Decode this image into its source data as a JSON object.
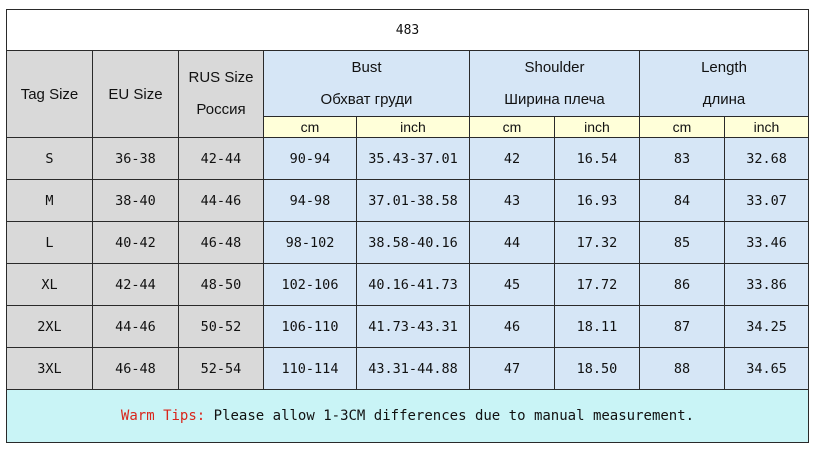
{
  "title": "483",
  "headers": {
    "tag_size": "Tag Size",
    "eu_size": "EU Size",
    "rus_size": "RUS Size",
    "rus_size_ru": "Россия",
    "bust": "Bust",
    "bust_ru": "Обхват груди",
    "shoulder": "Shoulder",
    "shoulder_ru": "Ширина плеча",
    "length": "Length",
    "length_ru": "длина",
    "cm": "cm",
    "inch": "inch"
  },
  "rows": [
    {
      "tag": "S",
      "eu": "36-38",
      "rus": "42-44",
      "bust_cm": "90-94",
      "bust_in": "35.43-37.01",
      "sh_cm": "42",
      "sh_in": "16.54",
      "len_cm": "83",
      "len_in": "32.68"
    },
    {
      "tag": "M",
      "eu": "38-40",
      "rus": "44-46",
      "bust_cm": "94-98",
      "bust_in": "37.01-38.58",
      "sh_cm": "43",
      "sh_in": "16.93",
      "len_cm": "84",
      "len_in": "33.07"
    },
    {
      "tag": "L",
      "eu": "40-42",
      "rus": "46-48",
      "bust_cm": "98-102",
      "bust_in": "38.58-40.16",
      "sh_cm": "44",
      "sh_in": "17.32",
      "len_cm": "85",
      "len_in": "33.46"
    },
    {
      "tag": "XL",
      "eu": "42-44",
      "rus": "48-50",
      "bust_cm": "102-106",
      "bust_in": "40.16-41.73",
      "sh_cm": "45",
      "sh_in": "17.72",
      "len_cm": "86",
      "len_in": "33.86"
    },
    {
      "tag": "2XL",
      "eu": "44-46",
      "rus": "50-52",
      "bust_cm": "106-110",
      "bust_in": "41.73-43.31",
      "sh_cm": "46",
      "sh_in": "18.11",
      "len_cm": "87",
      "len_in": "34.25"
    },
    {
      "tag": "3XL",
      "eu": "46-48",
      "rus": "52-54",
      "bust_cm": "110-114",
      "bust_in": "43.31-44.88",
      "sh_cm": "47",
      "sh_in": "18.50",
      "len_cm": "88",
      "len_in": "34.65"
    }
  ],
  "tips": {
    "label": "Warm Tips:",
    "text": " Please allow 1-3CM differences due to manual measurement."
  },
  "colors": {
    "header_grey": "#d9d9d9",
    "header_blue": "#d6e6f6",
    "subheader_yellow": "#ffffd9",
    "tips_background": "#c9f4f6",
    "tips_label": "#d9261c"
  }
}
